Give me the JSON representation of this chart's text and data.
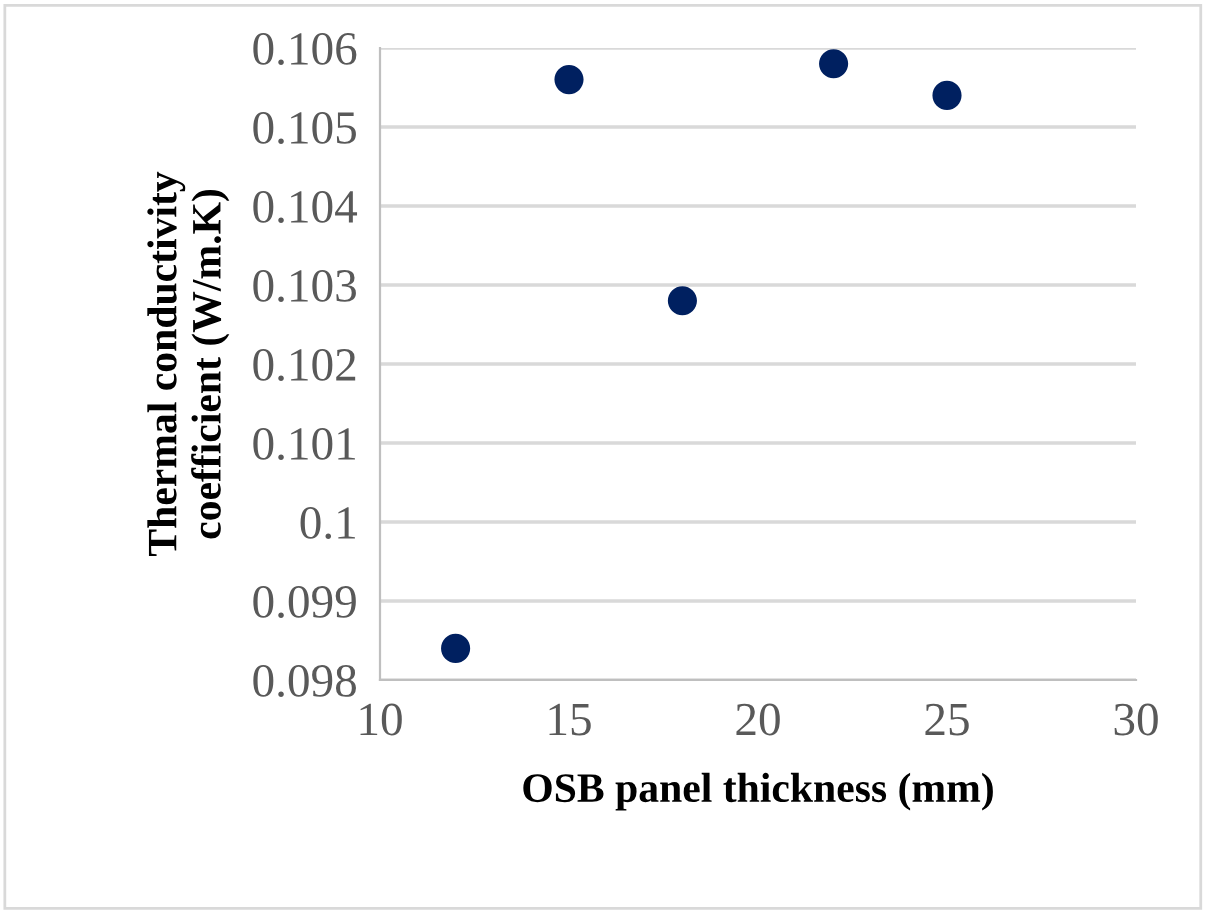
{
  "chart_data": {
    "type": "scatter",
    "xlabel": "OSB panel thickness (mm)",
    "ylabel": "Thermal conductivity\ncoefficient (W/m.K)",
    "series": [
      {
        "color": "#002060",
        "x": [
          12,
          15,
          18,
          22,
          25
        ],
        "values": [
          0.0984,
          0.1056,
          0.1028,
          0.1058,
          0.1054
        ]
      }
    ],
    "xlim": [
      10,
      30
    ],
    "xticks": [
      10,
      15,
      20,
      25,
      30
    ],
    "ylim": [
      0.098,
      0.106
    ],
    "yticks": [
      0.098,
      0.099,
      0.1,
      0.101,
      0.102,
      0.103,
      0.104,
      0.105,
      0.106
    ],
    "grid": "y",
    "marker": "circle",
    "legend": false
  }
}
